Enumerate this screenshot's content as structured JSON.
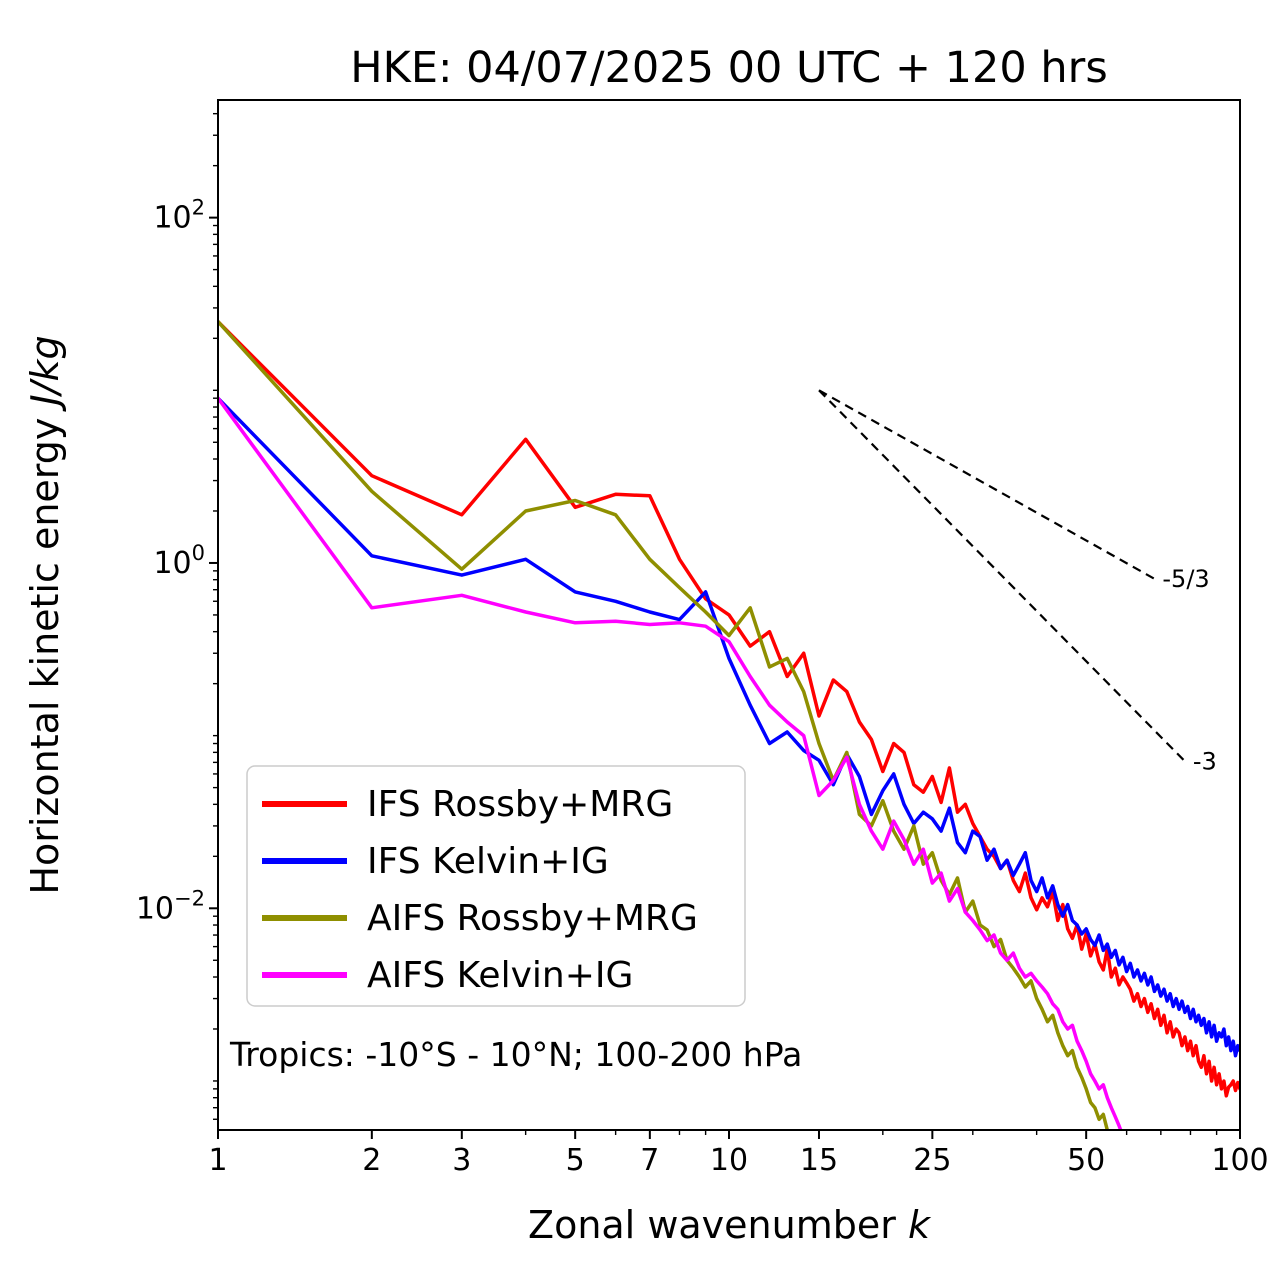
{
  "chart_data": {
    "type": "line",
    "title": "HKE: 04/07/2025 00 UTC + 120 hrs",
    "note": "Tropics: -10°S - 10°N; 100-200 hPa",
    "xlabel": "Zonal wavenumber",
    "xlabel_math": "k",
    "ylabel": "Horizontal kinetic energy",
    "ylabel_math": "J/kg",
    "xscale": "log",
    "yscale": "log",
    "xlim": [
      1,
      100
    ],
    "ylim": [
      0.00052,
      480
    ],
    "x_major_ticks": [
      {
        "v": 1,
        "label": "1"
      },
      {
        "v": 2,
        "label": "2"
      },
      {
        "v": 3,
        "label": "3"
      },
      {
        "v": 5,
        "label": "5"
      },
      {
        "v": 7,
        "label": "7"
      },
      {
        "v": 10,
        "label": "10"
      },
      {
        "v": 15,
        "label": "15"
      },
      {
        "v": 25,
        "label": "25"
      },
      {
        "v": 50,
        "label": "50"
      },
      {
        "v": 100,
        "label": "100"
      }
    ],
    "x_minor_ticks": [
      4,
      6,
      8,
      9,
      20,
      30,
      40,
      60,
      70,
      80,
      90
    ],
    "y_major_ticks": [
      {
        "v": 100,
        "base": "10",
        "exp": "2"
      },
      {
        "v": 1,
        "base": "10",
        "exp": "0"
      },
      {
        "v": 0.01,
        "base": "10",
        "exp": "−2"
      }
    ],
    "legend_position": "lower left",
    "series": [
      {
        "name": "IFS Rossby+MRG",
        "color": "#ff0000",
        "k_start": 1,
        "values": [
          25,
          3.2,
          1.9,
          5.2,
          2.1,
          2.5,
          2.45,
          1.05,
          0.62,
          0.5,
          0.33,
          0.4,
          0.22,
          0.3,
          0.13,
          0.21,
          0.18,
          0.12,
          0.095,
          0.062,
          0.09,
          0.08,
          0.052,
          0.047,
          0.058,
          0.041,
          0.065,
          0.036,
          0.04,
          0.031,
          0.026,
          0.022,
          0.02,
          0.017,
          0.019,
          0.0145,
          0.0125,
          0.016,
          0.0115,
          0.0098,
          0.0115,
          0.0102,
          0.0125,
          0.0085,
          0.0105,
          0.0076,
          0.0067,
          0.008,
          0.0058,
          0.0071,
          0.0053,
          0.0062,
          0.0049,
          0.0044,
          0.0058,
          0.004,
          0.0045,
          0.0036,
          0.004,
          0.0037,
          0.0034,
          0.0029,
          0.0032,
          0.0027,
          0.003,
          0.0025,
          0.0028,
          0.0023,
          0.0026,
          0.0021,
          0.0024,
          0.0019,
          0.0022,
          0.0018,
          0.002,
          0.0019,
          0.0016,
          0.0018,
          0.0015,
          0.0017,
          0.0014,
          0.0016,
          0.0013,
          0.0012,
          0.0014,
          0.0011,
          0.0013,
          0.001,
          0.0012,
          0.00095,
          0.0011,
          0.0009,
          0.001,
          0.00082,
          0.00092,
          0.00095,
          0.001,
          0.00088,
          0.00098,
          0.0009
        ]
      },
      {
        "name": "IFS Kelvin+IG",
        "color": "#0000ff",
        "k_start": 1,
        "values": [
          9,
          1.1,
          0.85,
          1.05,
          0.68,
          0.6,
          0.52,
          0.47,
          0.68,
          0.28,
          0.15,
          0.09,
          0.105,
          0.082,
          0.072,
          0.052,
          0.078,
          0.058,
          0.035,
          0.048,
          0.06,
          0.04,
          0.031,
          0.036,
          0.033,
          0.028,
          0.038,
          0.024,
          0.021,
          0.028,
          0.026,
          0.019,
          0.022,
          0.017,
          0.019,
          0.0155,
          0.018,
          0.021,
          0.0145,
          0.0125,
          0.015,
          0.0115,
          0.0135,
          0.0105,
          0.009,
          0.0105,
          0.0085,
          0.008,
          0.0071,
          0.0076,
          0.0066,
          0.0061,
          0.007,
          0.0057,
          0.0062,
          0.0052,
          0.0057,
          0.0047,
          0.0052,
          0.0043,
          0.0048,
          0.004,
          0.0044,
          0.0038,
          0.0042,
          0.0036,
          0.004,
          0.0033,
          0.0036,
          0.0031,
          0.0034,
          0.0029,
          0.0032,
          0.0027,
          0.003,
          0.0026,
          0.0029,
          0.0025,
          0.0027,
          0.0023,
          0.0026,
          0.0022,
          0.0024,
          0.0021,
          0.0023,
          0.0019,
          0.0022,
          0.0018,
          0.0021,
          0.0017,
          0.0019,
          0.0018,
          0.002,
          0.0016,
          0.0018,
          0.0015,
          0.0017,
          0.0014,
          0.0016,
          0.0015
        ]
      },
      {
        "name": "AIFS Rossby+MRG",
        "color": "#8f8f00",
        "k_start": 1,
        "values": [
          25,
          2.6,
          0.92,
          2.0,
          2.3,
          1.9,
          1.05,
          0.72,
          0.52,
          0.38,
          0.55,
          0.25,
          0.28,
          0.18,
          0.09,
          0.055,
          0.08,
          0.035,
          0.03,
          0.042,
          0.028,
          0.022,
          0.03,
          0.018,
          0.021,
          0.0145,
          0.012,
          0.015,
          0.0095,
          0.011,
          0.008,
          0.0075,
          0.006,
          0.0066,
          0.005,
          0.0045,
          0.004,
          0.0035,
          0.0038,
          0.003,
          0.0026,
          0.0022,
          0.0024,
          0.0019,
          0.0016,
          0.0014,
          0.0015,
          0.0012,
          0.00105,
          0.0009,
          0.00075,
          0.0007,
          0.0006,
          0.00064,
          0.00052,
          0.00045,
          0.00038
        ]
      },
      {
        "name": "AIFS Kelvin+IG",
        "color": "#ff00ff",
        "k_start": 1,
        "values": [
          9,
          0.55,
          0.65,
          0.52,
          0.45,
          0.46,
          0.44,
          0.45,
          0.43,
          0.35,
          0.22,
          0.15,
          0.12,
          0.1,
          0.045,
          0.055,
          0.075,
          0.04,
          0.028,
          0.022,
          0.032,
          0.025,
          0.018,
          0.022,
          0.014,
          0.016,
          0.011,
          0.013,
          0.0095,
          0.0085,
          0.0075,
          0.0065,
          0.007,
          0.0055,
          0.005,
          0.0055,
          0.0045,
          0.004,
          0.0042,
          0.0038,
          0.0035,
          0.0032,
          0.0028,
          0.0026,
          0.0022,
          0.002,
          0.0021,
          0.0017,
          0.0015,
          0.0013,
          0.0011,
          0.001,
          0.0009,
          0.00095,
          0.0008,
          0.0007,
          0.00062,
          0.00055,
          0.00048,
          0.00042
        ]
      }
    ],
    "reference_lines": [
      {
        "label": "-5/3",
        "x1": 15,
        "y1": 10,
        "x2": 68,
        "y2": 0.81,
        "style": "dashed",
        "color": "#000000"
      },
      {
        "label": "-3",
        "x1": 15,
        "y1": 10,
        "x2": 78,
        "y2": 0.071,
        "style": "dashed",
        "color": "#000000"
      }
    ]
  }
}
